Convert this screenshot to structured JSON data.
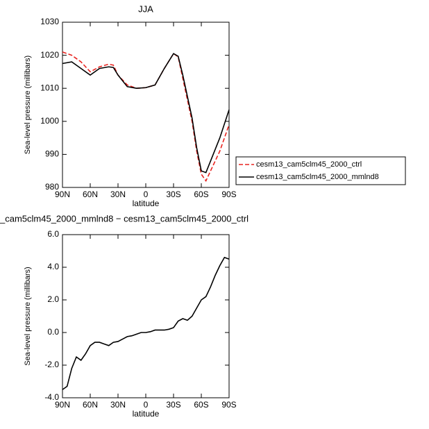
{
  "chart_data": [
    {
      "type": "line",
      "title": "JJA",
      "x_label": "latitude",
      "y_label": "Sea-level pressure (millibars)",
      "x": [
        90,
        80,
        70,
        60,
        50,
        40,
        35,
        30,
        20,
        10,
        0,
        -10,
        -20,
        -30,
        -35,
        -40,
        -50,
        -55,
        -60,
        -65,
        -70,
        -80,
        -90
      ],
      "xlim": [
        90,
        -90
      ],
      "xticks": [
        {
          "value": 90,
          "label": "90N"
        },
        {
          "value": 60,
          "label": "60N"
        },
        {
          "value": 30,
          "label": "30N"
        },
        0,
        {
          "value": -30,
          "label": "30S"
        },
        {
          "value": -60,
          "label": "60S"
        },
        {
          "value": -90,
          "label": "90S"
        }
      ],
      "ylim": [
        980,
        1030
      ],
      "yticks": [
        980,
        990,
        1000,
        1010,
        1020,
        1030
      ],
      "legend": "right",
      "series": [
        {
          "name": "cesm13_cam5clm45_2000_ctrl",
          "color": "#e8231f",
          "dash": true,
          "values": [
            1021,
            1020,
            1018,
            1015,
            1016.5,
            1017.3,
            1017,
            1014,
            1011,
            1010,
            1010.2,
            1011,
            1016,
            1020.5,
            1019.5,
            1013,
            1000,
            991,
            984,
            982,
            985,
            991,
            999
          ]
        },
        {
          "name": "cesm13_cam5clm45_2000_mmlnd8",
          "color": "#000000",
          "dash": false,
          "values": [
            1017.5,
            1018,
            1016,
            1014,
            1016,
            1016.5,
            1016.3,
            1014,
            1010.5,
            1010,
            1010.2,
            1011,
            1016,
            1020.5,
            1019.7,
            1014,
            1001,
            992,
            985,
            984.5,
            988,
            995,
            1003.5
          ]
        }
      ]
    },
    {
      "type": "line",
      "title": "_cam5clm45_2000_mmlnd8 − cesm13_cam5clm45_2000_ctrl",
      "x_label": "latitude",
      "y_label": "Sea-level pressure (millibars)",
      "x": [
        90,
        85,
        80,
        75,
        70,
        65,
        60,
        55,
        50,
        45,
        40,
        35,
        30,
        25,
        20,
        15,
        10,
        5,
        0,
        -5,
        -10,
        -15,
        -20,
        -25,
        -30,
        -35,
        -40,
        -45,
        -50,
        -55,
        -60,
        -65,
        -70,
        -75,
        -80,
        -85,
        -90
      ],
      "xlim": [
        90,
        -90
      ],
      "xticks": [
        {
          "value": 90,
          "label": "90N"
        },
        {
          "value": 60,
          "label": "60N"
        },
        {
          "value": 30,
          "label": "30N"
        },
        0,
        {
          "value": -30,
          "label": "30S"
        },
        {
          "value": -60,
          "label": "60S"
        },
        {
          "value": -90,
          "label": "90S"
        }
      ],
      "ylim": [
        -4,
        6
      ],
      "yticks": [
        {
          "value": -4,
          "label": "-4.0"
        },
        {
          "value": -2,
          "label": "-2.0"
        },
        {
          "value": 0,
          "label": "0.0"
        },
        {
          "value": 2,
          "label": "2.0"
        },
        {
          "value": 4,
          "label": "4.0"
        },
        {
          "value": 6,
          "label": "6.0"
        }
      ],
      "series": [
        {
          "color": "#000000",
          "dash": false,
          "values": [
            -3.5,
            -3.3,
            -2.2,
            -1.5,
            -1.7,
            -1.3,
            -0.8,
            -0.6,
            -0.6,
            -0.7,
            -0.8,
            -0.6,
            -0.55,
            -0.4,
            -0.25,
            -0.2,
            -0.1,
            0,
            0,
            0.05,
            0.15,
            0.15,
            0.15,
            0.2,
            0.3,
            0.7,
            0.85,
            0.75,
            1.0,
            1.5,
            2.0,
            2.2,
            2.8,
            3.5,
            4.1,
            4.6,
            4.5
          ]
        }
      ]
    }
  ]
}
